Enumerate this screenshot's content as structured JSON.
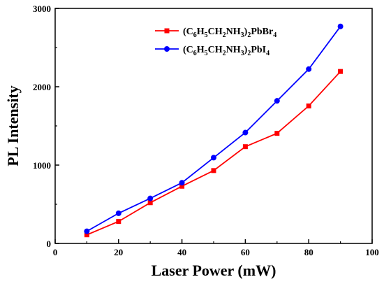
{
  "chart_data": {
    "type": "line",
    "xlabel": "Laser Power (mW)",
    "ylabel": "PL Intensity",
    "xlim": [
      0,
      100
    ],
    "ylim": [
      0,
      3000
    ],
    "xticks": [
      0,
      20,
      40,
      60,
      80,
      100
    ],
    "yticks": [
      0,
      1000,
      2000,
      3000
    ],
    "x_tick_labels": [
      "0",
      "20",
      "40",
      "60",
      "80",
      "100"
    ],
    "y_tick_labels": [
      "0",
      "1000",
      "2000",
      "3000"
    ],
    "grid": false,
    "legend_position": "top-right",
    "series": [
      {
        "legend": {
          "pre": "(C",
          "s1": "6",
          "m1": "H",
          "s2": "5",
          "m2": "CH",
          "s3": "2",
          "m3": "NH",
          "s4": "3",
          "m4": ")",
          "s5": "2",
          "m5": "PbBr",
          "s6": "4"
        },
        "color": "#ff0000",
        "marker": "square",
        "x": [
          10,
          20,
          30,
          40,
          50,
          60,
          70,
          80,
          90
        ],
        "y": [
          110,
          280,
          520,
          730,
          930,
          1235,
          1405,
          1755,
          2195
        ]
      },
      {
        "legend": {
          "pre": "(C",
          "s1": "6",
          "m1": "H",
          "s2": "5",
          "m2": "CH",
          "s3": "2",
          "m3": "NH",
          "s4": "3",
          "m4": ")",
          "s5": "2",
          "m5": "PbI",
          "s6": "4"
        },
        "color": "#0000ff",
        "marker": "circle",
        "x": [
          10,
          20,
          30,
          40,
          50,
          60,
          70,
          80,
          90
        ],
        "y": [
          155,
          385,
          575,
          775,
          1095,
          1415,
          1820,
          2225,
          2770
        ]
      }
    ]
  }
}
